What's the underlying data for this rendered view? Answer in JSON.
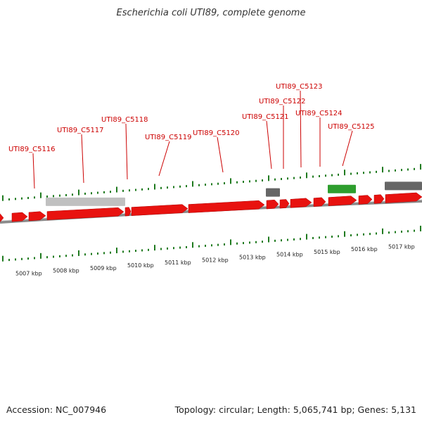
{
  "title": "Escherichia coli UTI89, complete genome",
  "footer": {
    "accession": "Accession: NC_007946",
    "topology": "Topology: circular; Length: 5,065,741 bp; Genes: 5,131"
  },
  "colors": {
    "gene_forward": "#e8120f",
    "gene_gray": "#666666",
    "gene_lightgray": "#c0c0c0",
    "gene_green": "#2e9e2e",
    "tick_green": "#1f7a1f",
    "backbone": "#8a8a8a",
    "label_red": "#cc0000"
  },
  "gene_labels": [
    {
      "name": "UTI89_C5116"
    },
    {
      "name": "UTI89_C5117"
    },
    {
      "name": "UTI89_C5118"
    },
    {
      "name": "UTI89_C5119"
    },
    {
      "name": "UTI89_C5120"
    },
    {
      "name": "UTI89_C5121"
    },
    {
      "name": "UTI89_C5122"
    },
    {
      "name": "UTI89_C5123"
    },
    {
      "name": "UTI89_C5124"
    },
    {
      "name": "UTI89_C5125"
    }
  ],
  "kbp_labels": [
    "5007 kbp",
    "5008 kbp",
    "5009 kbp",
    "5010 kbp",
    "5011 kbp",
    "5012 kbp",
    "5013 kbp",
    "5014 kbp",
    "5015 kbp",
    "5016 kbp",
    "5017 kbp"
  ]
}
